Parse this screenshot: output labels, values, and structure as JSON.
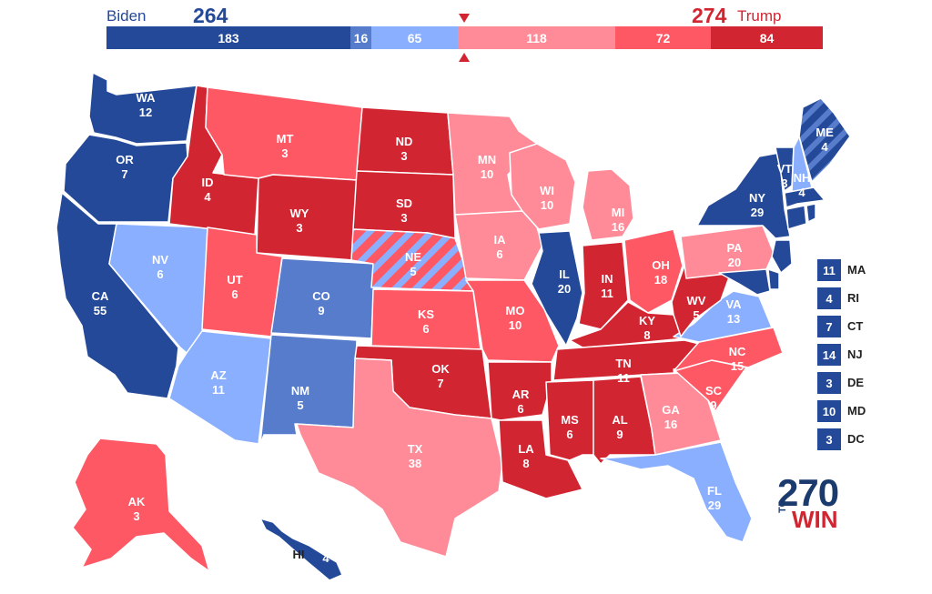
{
  "header": {
    "dem_name": "Biden",
    "dem_votes": "264",
    "rep_votes": "274",
    "rep_name": "Trump",
    "segments": [
      {
        "value": "183",
        "color": "#244999"
      },
      {
        "value": "16",
        "color": "#577ccc"
      },
      {
        "value": "65",
        "color": "#8aafff"
      },
      {
        "value": "118",
        "color": "#ff8b98"
      },
      {
        "value": "72",
        "color": "#ff5865"
      },
      {
        "value": "84",
        "color": "#d22532"
      }
    ],
    "colors": {
      "dem": "#244999",
      "rep": "#d22532"
    }
  },
  "states": [
    {
      "abbr": "WA",
      "ev": "12",
      "cat": "safe-d"
    },
    {
      "abbr": "OR",
      "ev": "7",
      "cat": "safe-d"
    },
    {
      "abbr": "CA",
      "ev": "55",
      "cat": "safe-d"
    },
    {
      "abbr": "NV",
      "ev": "6",
      "cat": "lean-d"
    },
    {
      "abbr": "ID",
      "ev": "4",
      "cat": "safe-r"
    },
    {
      "abbr": "MT",
      "ev": "3",
      "cat": "likely-r"
    },
    {
      "abbr": "WY",
      "ev": "3",
      "cat": "safe-r"
    },
    {
      "abbr": "UT",
      "ev": "6",
      "cat": "likely-r"
    },
    {
      "abbr": "AZ",
      "ev": "11",
      "cat": "lean-d"
    },
    {
      "abbr": "CO",
      "ev": "9",
      "cat": "likely-d"
    },
    {
      "abbr": "NM",
      "ev": "5",
      "cat": "likely-d"
    },
    {
      "abbr": "ND",
      "ev": "3",
      "cat": "safe-r"
    },
    {
      "abbr": "SD",
      "ev": "3",
      "cat": "safe-r"
    },
    {
      "abbr": "NE",
      "ev": "5",
      "cat": "split"
    },
    {
      "abbr": "KS",
      "ev": "6",
      "cat": "likely-r"
    },
    {
      "abbr": "OK",
      "ev": "7",
      "cat": "safe-r"
    },
    {
      "abbr": "TX",
      "ev": "38",
      "cat": "lean-r"
    },
    {
      "abbr": "MN",
      "ev": "10",
      "cat": "lean-r"
    },
    {
      "abbr": "IA",
      "ev": "6",
      "cat": "lean-r"
    },
    {
      "abbr": "MO",
      "ev": "10",
      "cat": "likely-r"
    },
    {
      "abbr": "AR",
      "ev": "6",
      "cat": "safe-r"
    },
    {
      "abbr": "LA",
      "ev": "8",
      "cat": "safe-r"
    },
    {
      "abbr": "WI",
      "ev": "10",
      "cat": "lean-r"
    },
    {
      "abbr": "IL",
      "ev": "20",
      "cat": "safe-d"
    },
    {
      "abbr": "MI",
      "ev": "16",
      "cat": "lean-r"
    },
    {
      "abbr": "IN",
      "ev": "11",
      "cat": "safe-r"
    },
    {
      "abbr": "OH",
      "ev": "18",
      "cat": "likely-r"
    },
    {
      "abbr": "KY",
      "ev": "8",
      "cat": "safe-r"
    },
    {
      "abbr": "TN",
      "ev": "11",
      "cat": "safe-r"
    },
    {
      "abbr": "MS",
      "ev": "6",
      "cat": "safe-r"
    },
    {
      "abbr": "AL",
      "ev": "9",
      "cat": "safe-r"
    },
    {
      "abbr": "GA",
      "ev": "16",
      "cat": "lean-r"
    },
    {
      "abbr": "FL",
      "ev": "29",
      "cat": "lean-d"
    },
    {
      "abbr": "SC",
      "ev": "9",
      "cat": "likely-r"
    },
    {
      "abbr": "NC",
      "ev": "15",
      "cat": "likely-r"
    },
    {
      "abbr": "VA",
      "ev": "13",
      "cat": "lean-d"
    },
    {
      "abbr": "WV",
      "ev": "5",
      "cat": "safe-r"
    },
    {
      "abbr": "PA",
      "ev": "20",
      "cat": "lean-r"
    },
    {
      "abbr": "NY",
      "ev": "29",
      "cat": "safe-d"
    },
    {
      "abbr": "VT",
      "ev": "3",
      "cat": "safe-d"
    },
    {
      "abbr": "NH",
      "ev": "4",
      "cat": "lean-d"
    },
    {
      "abbr": "ME",
      "ev": "4",
      "cat": "split-me"
    },
    {
      "abbr": "AK",
      "ev": "3",
      "cat": "likely-r"
    },
    {
      "abbr": "HI",
      "ev": "4",
      "cat": "safe-d"
    }
  ],
  "legend": [
    {
      "ev": "11",
      "abbr": "MA"
    },
    {
      "ev": "4",
      "abbr": "RI"
    },
    {
      "ev": "7",
      "abbr": "CT"
    },
    {
      "ev": "14",
      "abbr": "NJ"
    },
    {
      "ev": "3",
      "abbr": "DE"
    },
    {
      "ev": "10",
      "abbr": "MD"
    },
    {
      "ev": "3",
      "abbr": "DC"
    }
  ],
  "category_colors": {
    "safe-d": "#244999",
    "likely-d": "#577ccc",
    "lean-d": "#8aafff",
    "lean-r": "#ff8b98",
    "likely-r": "#ff5865",
    "safe-r": "#d22532"
  },
  "logo": {
    "number": "270",
    "to": "TO",
    "win": "WIN"
  }
}
